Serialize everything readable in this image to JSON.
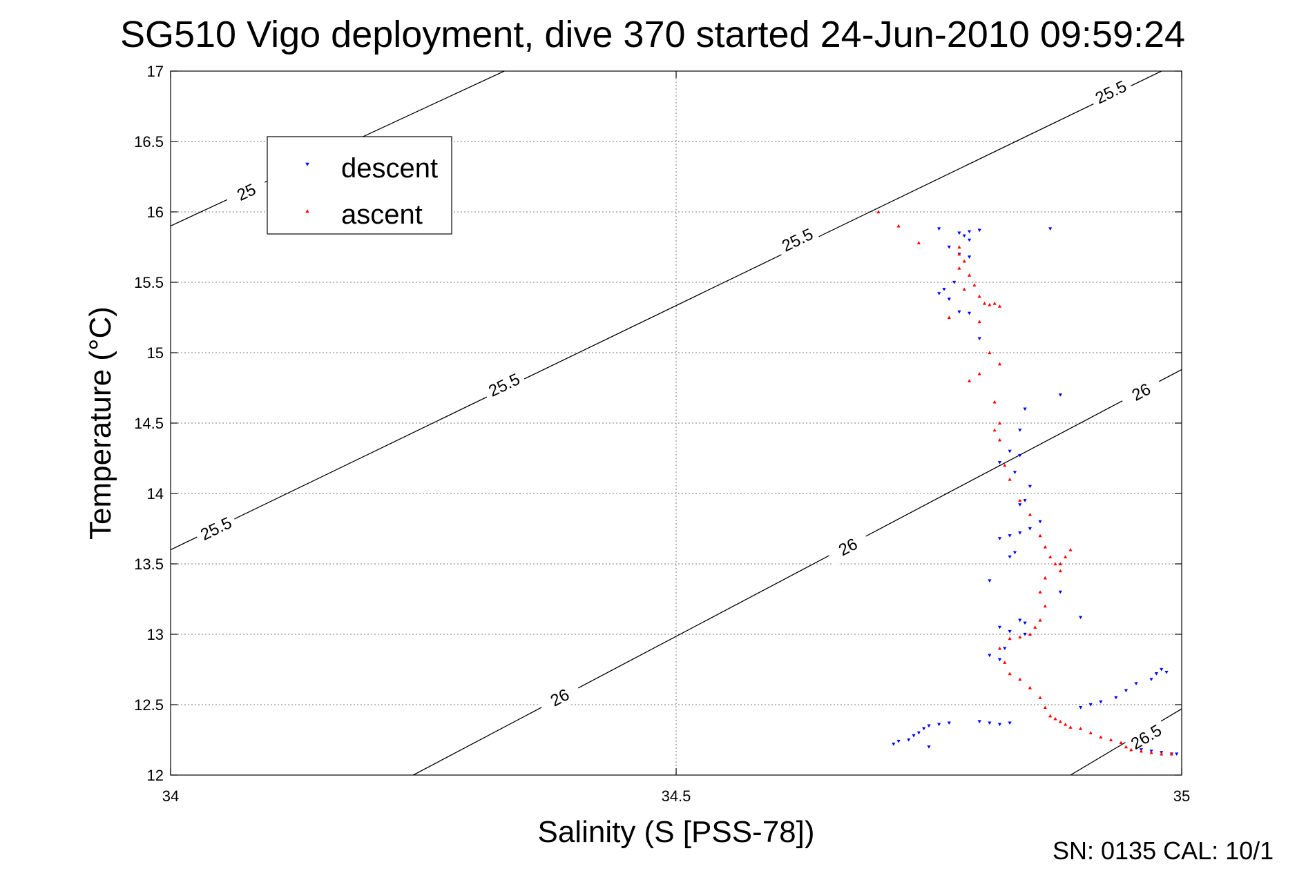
{
  "chart_data": {
    "type": "scatter",
    "title": "SG510 Vigo deployment, dive 370 started 24-Jun-2010 09:59:24",
    "xlabel": "Salinity (S [PSS-78])",
    "ylabel": "Temperature (°C)",
    "xlim": [
      34,
      35
    ],
    "ylim": [
      12,
      17
    ],
    "xticks": [
      34,
      34.5,
      35
    ],
    "xtick_labels": [
      "34",
      "34.5",
      "35"
    ],
    "yticks": [
      12,
      12.5,
      13,
      13.5,
      14,
      14.5,
      15,
      15.5,
      16,
      16.5,
      17
    ],
    "ytick_labels": [
      "12",
      "12.5",
      "13",
      "13.5",
      "14",
      "14.5",
      "15",
      "15.5",
      "16",
      "16.5",
      "17"
    ],
    "grid": true,
    "legend_position": "top-left",
    "footer": "SN: 0135  CAL: 10/1",
    "colors": {
      "descent": "#0000ff",
      "ascent": "#ff0000",
      "contour": "#000000"
    },
    "isopycnals": [
      {
        "label": "25",
        "points": [
          [
            34.0,
            15.9
          ],
          [
            34.33,
            17.0
          ]
        ],
        "label_positions": [
          [
            34.075,
            16.14
          ]
        ]
      },
      {
        "label": "25.5",
        "points": [
          [
            34.0,
            13.6
          ],
          [
            34.98,
            17.0
          ]
        ],
        "label_positions": [
          [
            34.045,
            13.75
          ],
          [
            34.33,
            14.77
          ],
          [
            34.62,
            15.8
          ],
          [
            34.93,
            16.85
          ]
        ]
      },
      {
        "label": "26",
        "points": [
          [
            34.24,
            12.0
          ],
          [
            35.0,
            14.88
          ]
        ],
        "label_positions": [
          [
            34.385,
            12.55
          ],
          [
            34.67,
            13.62
          ],
          [
            34.96,
            14.72
          ]
        ]
      },
      {
        "label": "26.5",
        "points": [
          [
            34.89,
            12.0
          ],
          [
            35.0,
            12.47
          ]
        ],
        "label_positions": [
          [
            34.965,
            12.27
          ]
        ]
      }
    ],
    "series": [
      {
        "name": "descent",
        "marker": "down-triangle",
        "points": [
          [
            34.76,
            15.88
          ],
          [
            34.78,
            15.85
          ],
          [
            34.785,
            15.83
          ],
          [
            34.79,
            15.86
          ],
          [
            34.8,
            15.87
          ],
          [
            34.87,
            15.88
          ],
          [
            34.79,
            15.8
          ],
          [
            34.77,
            15.75
          ],
          [
            34.78,
            15.7
          ],
          [
            34.79,
            15.68
          ],
          [
            34.775,
            15.5
          ],
          [
            34.765,
            15.45
          ],
          [
            34.76,
            15.42
          ],
          [
            34.77,
            15.38
          ],
          [
            34.78,
            15.29
          ],
          [
            34.79,
            15.28
          ],
          [
            34.8,
            15.1
          ],
          [
            34.88,
            14.7
          ],
          [
            34.845,
            14.6
          ],
          [
            34.84,
            14.45
          ],
          [
            34.83,
            14.3
          ],
          [
            34.84,
            14.27
          ],
          [
            34.82,
            14.22
          ],
          [
            34.835,
            14.15
          ],
          [
            34.85,
            14.05
          ],
          [
            34.845,
            13.95
          ],
          [
            34.84,
            13.92
          ],
          [
            34.86,
            13.8
          ],
          [
            34.85,
            13.75
          ],
          [
            34.84,
            13.72
          ],
          [
            34.83,
            13.7
          ],
          [
            34.82,
            13.68
          ],
          [
            34.835,
            13.58
          ],
          [
            34.83,
            13.55
          ],
          [
            34.81,
            13.38
          ],
          [
            34.88,
            13.3
          ],
          [
            34.9,
            13.12
          ],
          [
            34.84,
            13.1
          ],
          [
            34.845,
            13.08
          ],
          [
            34.82,
            13.05
          ],
          [
            34.83,
            13.02
          ],
          [
            34.845,
            13.0
          ],
          [
            34.81,
            12.85
          ],
          [
            34.82,
            12.82
          ],
          [
            34.825,
            12.9
          ],
          [
            34.9,
            12.48
          ],
          [
            34.91,
            12.5
          ],
          [
            34.92,
            12.52
          ],
          [
            34.935,
            12.55
          ],
          [
            34.945,
            12.6
          ],
          [
            34.955,
            12.65
          ],
          [
            34.97,
            12.68
          ],
          [
            34.975,
            12.72
          ],
          [
            34.98,
            12.75
          ],
          [
            34.985,
            12.73
          ],
          [
            34.715,
            12.22
          ],
          [
            34.72,
            12.24
          ],
          [
            34.73,
            12.25
          ],
          [
            34.735,
            12.28
          ],
          [
            34.74,
            12.3
          ],
          [
            34.745,
            12.33
          ],
          [
            34.75,
            12.35
          ],
          [
            34.76,
            12.36
          ],
          [
            34.77,
            12.37
          ],
          [
            34.8,
            12.38
          ],
          [
            34.81,
            12.37
          ],
          [
            34.82,
            12.36
          ],
          [
            34.83,
            12.37
          ],
          [
            34.75,
            12.2
          ],
          [
            34.96,
            12.18
          ],
          [
            34.97,
            12.17
          ],
          [
            34.98,
            12.16
          ],
          [
            34.99,
            12.15
          ],
          [
            34.995,
            12.15
          ]
        ]
      },
      {
        "name": "ascent",
        "marker": "up-triangle",
        "points": [
          [
            34.7,
            16.0
          ],
          [
            34.72,
            15.9
          ],
          [
            34.74,
            15.78
          ],
          [
            34.78,
            15.75
          ],
          [
            34.78,
            15.7
          ],
          [
            34.785,
            15.65
          ],
          [
            34.78,
            15.6
          ],
          [
            34.79,
            15.55
          ],
          [
            34.795,
            15.48
          ],
          [
            34.785,
            15.45
          ],
          [
            34.8,
            15.4
          ],
          [
            34.805,
            15.35
          ],
          [
            34.81,
            15.34
          ],
          [
            34.815,
            15.35
          ],
          [
            34.82,
            15.33
          ],
          [
            34.77,
            15.25
          ],
          [
            34.8,
            15.22
          ],
          [
            34.81,
            15.0
          ],
          [
            34.82,
            14.92
          ],
          [
            34.8,
            14.85
          ],
          [
            34.79,
            14.8
          ],
          [
            34.815,
            14.65
          ],
          [
            34.82,
            14.5
          ],
          [
            34.815,
            14.45
          ],
          [
            34.82,
            14.38
          ],
          [
            34.825,
            14.2
          ],
          [
            34.83,
            14.1
          ],
          [
            34.84,
            13.95
          ],
          [
            34.85,
            13.85
          ],
          [
            34.86,
            13.7
          ],
          [
            34.865,
            13.62
          ],
          [
            34.87,
            13.55
          ],
          [
            34.875,
            13.5
          ],
          [
            34.88,
            13.5
          ],
          [
            34.885,
            13.55
          ],
          [
            34.89,
            13.6
          ],
          [
            34.88,
            13.45
          ],
          [
            34.865,
            13.4
          ],
          [
            34.86,
            13.3
          ],
          [
            34.865,
            13.2
          ],
          [
            34.86,
            13.1
          ],
          [
            34.855,
            13.05
          ],
          [
            34.85,
            13.0
          ],
          [
            34.84,
            12.98
          ],
          [
            34.83,
            12.97
          ],
          [
            34.82,
            12.9
          ],
          [
            34.825,
            12.8
          ],
          [
            34.83,
            12.72
          ],
          [
            34.84,
            12.68
          ],
          [
            34.85,
            12.62
          ],
          [
            34.86,
            12.55
          ],
          [
            34.865,
            12.48
          ],
          [
            34.87,
            12.42
          ],
          [
            34.875,
            12.4
          ],
          [
            34.88,
            12.38
          ],
          [
            34.885,
            12.36
          ],
          [
            34.89,
            12.34
          ],
          [
            34.9,
            12.33
          ],
          [
            34.91,
            12.3
          ],
          [
            34.92,
            12.27
          ],
          [
            34.93,
            12.25
          ],
          [
            34.94,
            12.23
          ],
          [
            34.945,
            12.2
          ],
          [
            34.95,
            12.18
          ],
          [
            34.96,
            12.17
          ],
          [
            34.97,
            12.16
          ],
          [
            34.98,
            12.15
          ],
          [
            34.99,
            12.15
          ]
        ]
      }
    ]
  }
}
